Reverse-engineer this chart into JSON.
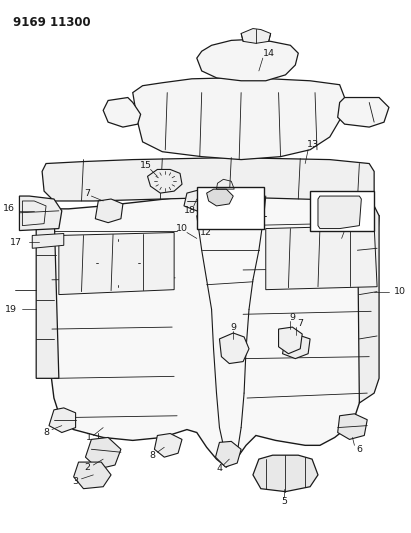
{
  "title": "9169 11300",
  "bg_color": "#ffffff",
  "line_color": "#1a1a1a",
  "fig_width": 4.11,
  "fig_height": 5.33,
  "dpi": 100
}
